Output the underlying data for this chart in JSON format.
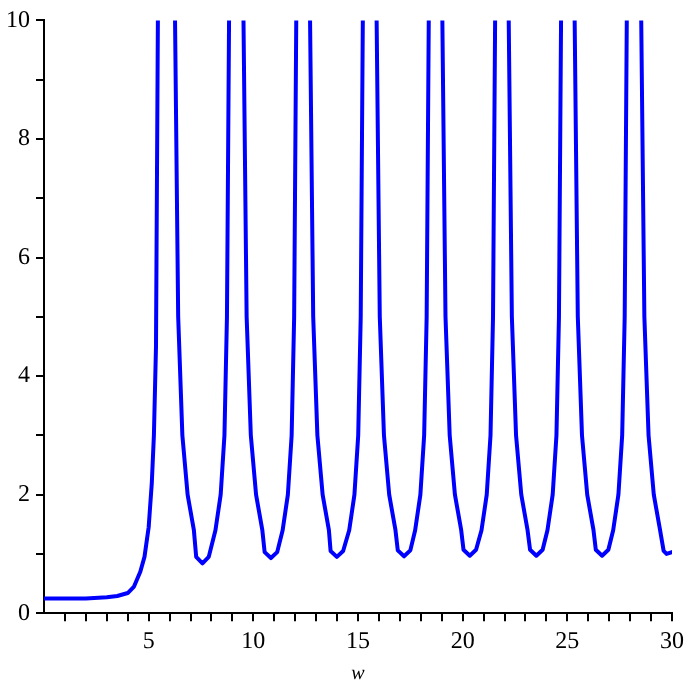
{
  "chart_data": {
    "type": "line",
    "xlabel": "w",
    "xlim": [
      0,
      30
    ],
    "ylim": [
      0,
      10
    ],
    "xticks": [
      {
        "value": 1,
        "label": null
      },
      {
        "value": 2,
        "label": null
      },
      {
        "value": 3,
        "label": null
      },
      {
        "value": 4,
        "label": null
      },
      5,
      {
        "value": 6,
        "label": null
      },
      {
        "value": 7,
        "label": null
      },
      {
        "value": 8,
        "label": null
      },
      {
        "value": 9,
        "label": null
      },
      10,
      {
        "value": 11,
        "label": null
      },
      {
        "value": 12,
        "label": null
      },
      {
        "value": 13,
        "label": null
      },
      {
        "value": 14,
        "label": null
      },
      15,
      {
        "value": 16,
        "label": null
      },
      {
        "value": 17,
        "label": null
      },
      {
        "value": 18,
        "label": null
      },
      {
        "value": 19,
        "label": null
      },
      20,
      {
        "value": 21,
        "label": null
      },
      {
        "value": 22,
        "label": null
      },
      {
        "value": 23,
        "label": null
      },
      {
        "value": 24,
        "label": null
      },
      25,
      {
        "value": 26,
        "label": null
      },
      {
        "value": 27,
        "label": null
      },
      {
        "value": 28,
        "label": null
      },
      {
        "value": 29,
        "label": null
      },
      30
    ],
    "yticks": [
      0,
      {
        "value": 1,
        "label": null
      },
      2,
      {
        "value": 3,
        "label": null
      },
      4,
      {
        "value": 5,
        "label": null
      },
      6,
      {
        "value": 7,
        "label": null
      },
      8,
      {
        "value": 9,
        "label": null
      },
      10
    ],
    "grid": false,
    "legend": false,
    "marker": "none",
    "line_style": "solid",
    "series": [
      {
        "color": "#0000ff",
        "x": [
          0,
          1,
          2,
          3,
          3.5,
          4,
          4.3,
          4.6,
          4.8,
          5,
          5.15,
          5.25,
          5.35,
          5.44,
          5.85,
          6.26,
          6.41,
          6.61,
          6.86,
          7.16,
          7.27,
          7.57,
          7.87,
          8.19,
          8.44,
          8.62,
          8.74,
          8.84,
          9.2,
          9.53,
          9.68,
          9.88,
          10.13,
          10.43,
          10.54,
          10.84,
          11.14,
          11.4,
          11.65,
          11.83,
          11.95,
          12.05,
          12.4,
          12.71,
          12.86,
          13.06,
          13.31,
          13.61,
          13.69,
          13.99,
          14.29,
          14.58,
          14.83,
          15.01,
          15.13,
          15.23,
          15.55,
          15.89,
          16.04,
          16.24,
          16.49,
          16.79,
          16.9,
          17.2,
          17.5,
          17.73,
          17.98,
          18.16,
          18.28,
          18.38,
          18.7,
          19.03,
          19.18,
          19.38,
          19.63,
          19.93,
          20.04,
          20.34,
          20.64,
          20.9,
          21.15,
          21.33,
          21.45,
          21.55,
          21.9,
          22.2,
          22.35,
          22.55,
          22.8,
          23.1,
          23.22,
          23.52,
          23.82,
          24.05,
          24.3,
          24.48,
          24.6,
          24.7,
          25.0,
          25.35,
          25.5,
          25.7,
          25.95,
          26.25,
          26.36,
          26.66,
          26.96,
          27.19,
          27.44,
          27.62,
          27.74,
          27.84,
          28.2,
          28.53,
          28.68,
          28.88,
          29.13,
          29.43,
          29.6,
          29.74,
          30
        ],
        "values": [
          0.25,
          0.25,
          0.25,
          0.27,
          0.29,
          0.34,
          0.45,
          0.7,
          0.95,
          1.45,
          2.2,
          3,
          4.5,
          10,
          null,
          10,
          5,
          3,
          2,
          1.4,
          0.95,
          0.84,
          0.95,
          1.4,
          2,
          3,
          5,
          10,
          null,
          10,
          5,
          3,
          2,
          1.4,
          1.03,
          0.93,
          1.03,
          1.4,
          2,
          3,
          5,
          10,
          null,
          10,
          5,
          3,
          2,
          1.4,
          1.05,
          0.95,
          1.05,
          1.4,
          2,
          3,
          5,
          10,
          null,
          10,
          5,
          3,
          2,
          1.4,
          1.06,
          0.96,
          1.06,
          1.4,
          2,
          3,
          5,
          10,
          null,
          10,
          5,
          3,
          2,
          1.4,
          1.07,
          0.97,
          1.07,
          1.4,
          2,
          3,
          5,
          10,
          null,
          10,
          5,
          3,
          2,
          1.4,
          1.07,
          0.97,
          1.07,
          1.4,
          2,
          3,
          5,
          10,
          null,
          10,
          5,
          3,
          2,
          1.4,
          1.07,
          0.97,
          1.07,
          1.4,
          2,
          3,
          5,
          10,
          null,
          10,
          5,
          3,
          2,
          1.4,
          1.05,
          1.0,
          1.03
        ]
      }
    ]
  }
}
